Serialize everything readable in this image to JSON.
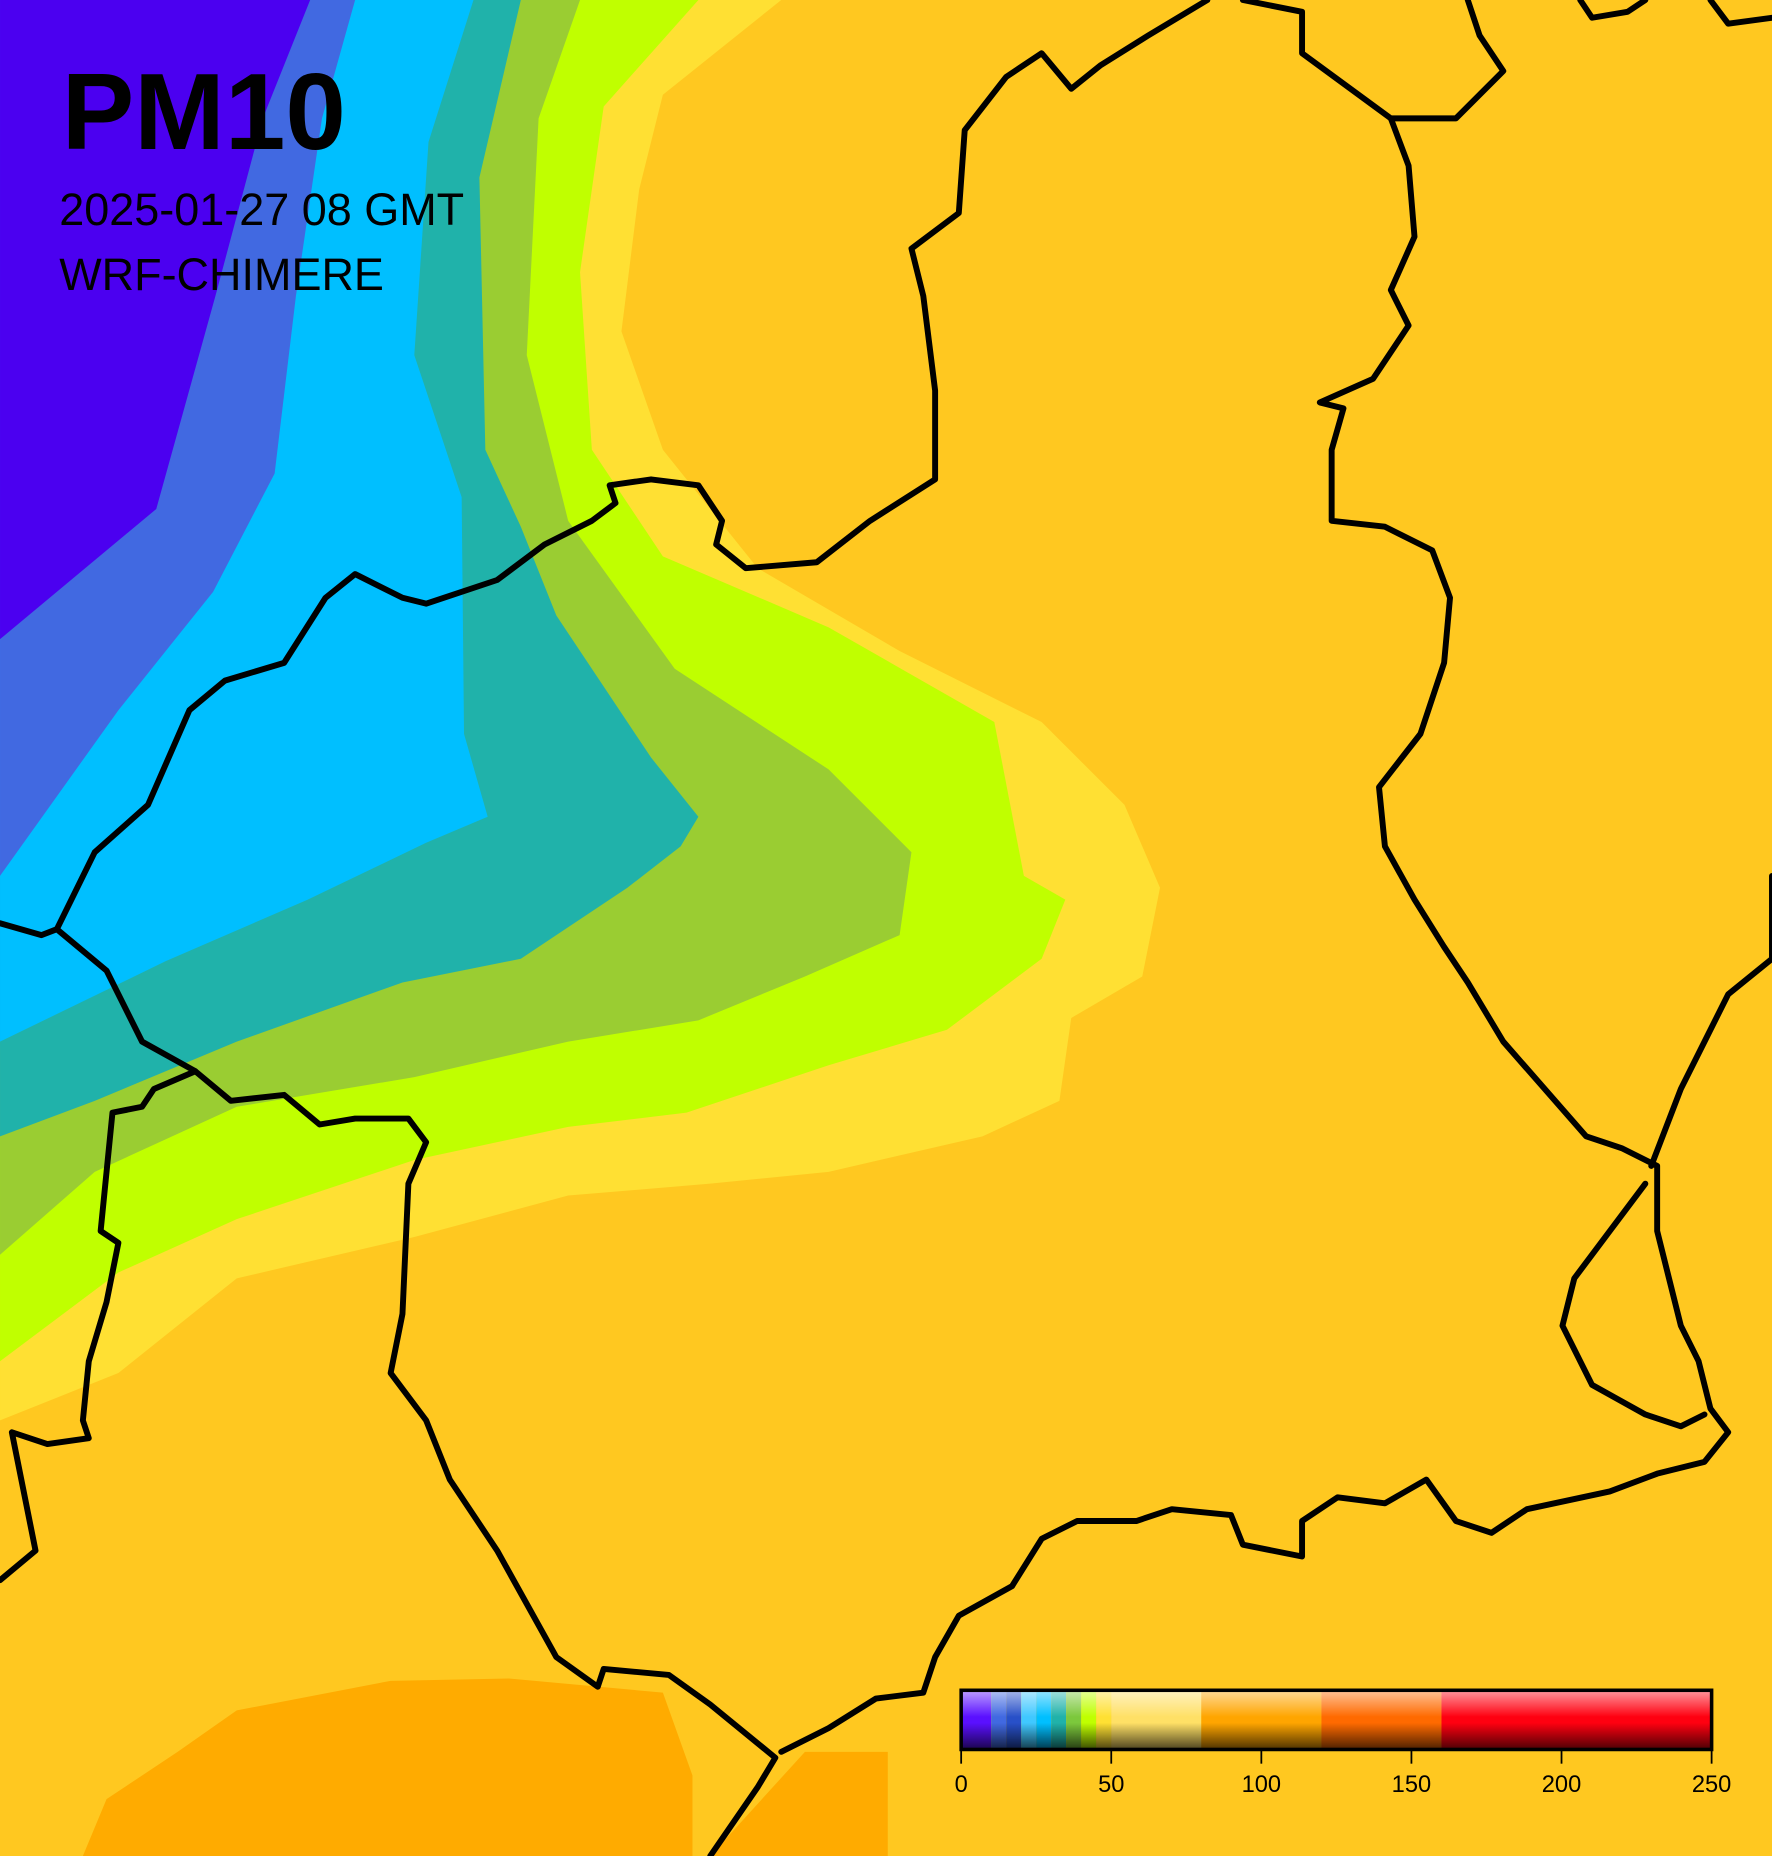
{
  "header": {
    "title": "PM10",
    "time": "2025-01-27 08 GMT",
    "model": "WRF-CHIMERE"
  },
  "colorbar": {
    "range": [
      0,
      250
    ],
    "ticks": [
      0,
      50,
      100,
      150,
      200,
      250
    ],
    "segments": [
      {
        "from": 0,
        "to": 10,
        "color": "#5a10ff"
      },
      {
        "from": 10,
        "to": 15,
        "color": "#4169e1"
      },
      {
        "from": 15,
        "to": 20,
        "color": "#2850c8"
      },
      {
        "from": 20,
        "to": 25,
        "color": "#40c8ff"
      },
      {
        "from": 25,
        "to": 30,
        "color": "#00bfff"
      },
      {
        "from": 30,
        "to": 35,
        "color": "#20b2aa"
      },
      {
        "from": 35,
        "to": 40,
        "color": "#7cc83c"
      },
      {
        "from": 40,
        "to": 45,
        "color": "#c0ff00"
      },
      {
        "from": 45,
        "to": 50,
        "color": "#ffe033"
      },
      {
        "from": 50,
        "to": 80,
        "color": "#ffe066"
      },
      {
        "from": 80,
        "to": 120,
        "color": "#ffa500"
      },
      {
        "from": 120,
        "to": 160,
        "color": "#ff6a00"
      },
      {
        "from": 160,
        "to": 250,
        "color": "#ff0010"
      }
    ]
  }
}
